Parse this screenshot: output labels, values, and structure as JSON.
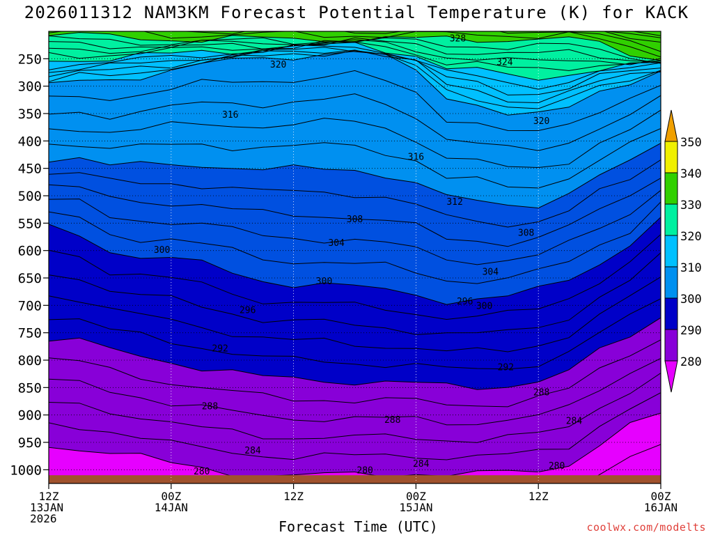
{
  "chart_data": {
    "type": "contour-time-height",
    "title": "2026011312 NAM3KM Forecast Potential Temperature (K) for KACK",
    "xlabel": "Forecast Time (UTC)",
    "credit": "coolwx.com/modelts",
    "y_levels": [
      250,
      300,
      350,
      400,
      450,
      500,
      550,
      600,
      650,
      700,
      750,
      800,
      850,
      900,
      950,
      1000
    ],
    "y_labels": [
      "250",
      "300",
      "350",
      "400",
      "450",
      "500",
      "550",
      "600",
      "650",
      "700",
      "750",
      "800",
      "850",
      "900",
      "950",
      "1000"
    ],
    "ylim": [
      200,
      1025
    ],
    "x_ticks": [
      {
        "hour": 0,
        "lines": [
          "12Z",
          "13JAN",
          "2026"
        ]
      },
      {
        "hour": 12,
        "lines": [
          "00Z",
          "14JAN"
        ]
      },
      {
        "hour": 24,
        "lines": [
          "12Z"
        ]
      },
      {
        "hour": 36,
        "lines": [
          "00Z",
          "15JAN"
        ]
      },
      {
        "hour": 48,
        "lines": [
          "12Z"
        ]
      },
      {
        "hour": 60,
        "lines": [
          "00Z",
          "16JAN"
        ]
      }
    ],
    "xlim": [
      0,
      60
    ],
    "colorbar": {
      "levels": [
        280,
        290,
        300,
        310,
        320,
        330,
        340,
        350
      ],
      "labels": [
        "280",
        "290",
        "300",
        "310",
        "320",
        "330",
        "340",
        "350"
      ],
      "colors": [
        "#8800d8",
        "#0000c8",
        "#0050e0",
        "#0090f0",
        "#00c0ff",
        "#00f0a0",
        "#30d000",
        "#f0f000",
        "#f0a000"
      ],
      "under_color": "#e600ff",
      "over_color": "#f0a000"
    },
    "contour_labels": [
      {
        "value": "328",
        "hour": 40.1,
        "p": 212
      },
      {
        "value": "324",
        "hour": 44.7,
        "p": 255
      },
      {
        "value": "320",
        "hour": 22.5,
        "p": 260
      },
      {
        "value": "320",
        "hour": 48.3,
        "p": 363
      },
      {
        "value": "316",
        "hour": 17.8,
        "p": 351
      },
      {
        "value": "316",
        "hour": 36.0,
        "p": 428
      },
      {
        "value": "312",
        "hour": 39.8,
        "p": 510
      },
      {
        "value": "308",
        "hour": 30.0,
        "p": 542
      },
      {
        "value": "308",
        "hour": 46.8,
        "p": 567
      },
      {
        "value": "304",
        "hour": 28.2,
        "p": 585
      },
      {
        "value": "304",
        "hour": 43.3,
        "p": 638
      },
      {
        "value": "300",
        "hour": 11.1,
        "p": 598
      },
      {
        "value": "300",
        "hour": 27.0,
        "p": 655
      },
      {
        "value": "300",
        "hour": 42.7,
        "p": 700
      },
      {
        "value": "296",
        "hour": 19.5,
        "p": 708
      },
      {
        "value": "296",
        "hour": 40.8,
        "p": 692
      },
      {
        "value": "292",
        "hour": 16.8,
        "p": 778
      },
      {
        "value": "292",
        "hour": 44.8,
        "p": 812
      },
      {
        "value": "288",
        "hour": 15.8,
        "p": 883
      },
      {
        "value": "288",
        "hour": 33.7,
        "p": 908
      },
      {
        "value": "288",
        "hour": 48.3,
        "p": 858
      },
      {
        "value": "284",
        "hour": 20.0,
        "p": 964
      },
      {
        "value": "284",
        "hour": 36.5,
        "p": 988
      },
      {
        "value": "284",
        "hour": 51.5,
        "p": 910
      },
      {
        "value": "280",
        "hour": 15.0,
        "p": 1002
      },
      {
        "value": "280",
        "hour": 31.0,
        "p": 1000
      },
      {
        "value": "280",
        "hour": 49.8,
        "p": 992
      }
    ]
  }
}
